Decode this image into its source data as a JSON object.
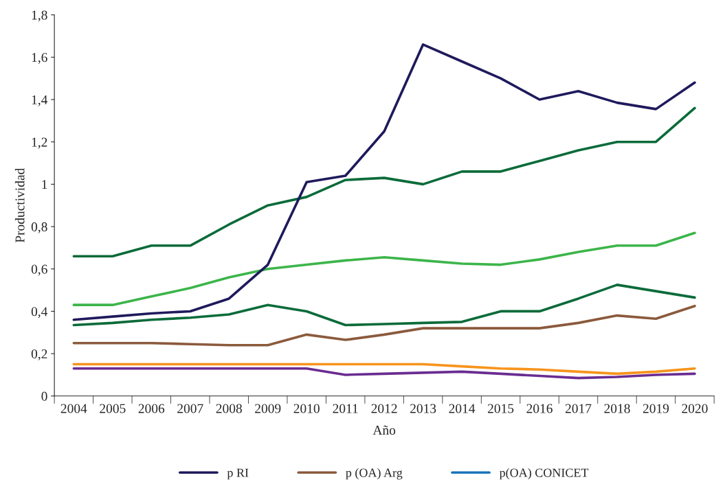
{
  "chart_data": {
    "type": "line",
    "xlabel": "Año",
    "ylabel": "Productividad",
    "categories": [
      "2004",
      "2005",
      "2006",
      "2007",
      "2008",
      "2009",
      "2010",
      "2011",
      "2012",
      "2013",
      "2014",
      "2015",
      "2016",
      "2017",
      "2018",
      "2019",
      "2020"
    ],
    "series": [
      {
        "color": "#f7941d",
        "values": [
          0.15,
          0.15,
          0.15,
          0.15,
          0.15,
          0.15,
          0.15,
          0.15,
          0.15,
          0.15,
          0.14,
          0.13,
          0.125,
          0.115,
          0.105,
          0.115,
          0.13
        ]
      },
      {
        "color": "#0b6b3a",
        "values": [
          0.66,
          0.66,
          0.71,
          0.71,
          0.81,
          0.9,
          0.94,
          1.02,
          1.03,
          1.0,
          1.06,
          1.06,
          1.11,
          1.16,
          1.2,
          1.2,
          1.36
        ]
      },
      {
        "color": "#0b6b3a",
        "values": [
          0.335,
          0.345,
          0.36,
          0.37,
          0.385,
          0.43,
          0.4,
          0.335,
          0.34,
          0.345,
          0.35,
          0.4,
          0.4,
          0.46,
          0.525,
          0.495,
          0.465
        ]
      },
      {
        "color": "#6a2c91",
        "values": [
          0.13,
          0.13,
          0.13,
          0.13,
          0.13,
          0.13,
          0.13,
          0.1,
          0.105,
          0.11,
          0.115,
          0.105,
          0.095,
          0.085,
          0.09,
          0.1,
          0.105
        ]
      },
      {
        "color": "#3cb54a",
        "values": [
          0.43,
          0.43,
          0.47,
          0.51,
          0.56,
          0.6,
          0.62,
          0.64,
          0.655,
          0.64,
          0.625,
          0.62,
          0.645,
          0.68,
          0.71,
          0.71,
          0.77
        ]
      },
      {
        "name": "p RI",
        "color": "#1f1a5c",
        "values": [
          0.36,
          0.375,
          0.39,
          0.4,
          0.46,
          0.62,
          1.01,
          1.04,
          1.25,
          1.66,
          1.58,
          1.5,
          1.4,
          1.44,
          1.385,
          1.355,
          1.48
        ]
      },
      {
        "name": "p (OA) Arg",
        "color": "#8b5a3c",
        "values": [
          0.25,
          0.25,
          0.25,
          0.245,
          0.24,
          0.24,
          0.29,
          0.265,
          0.29,
          0.32,
          0.32,
          0.32,
          0.32,
          0.345,
          0.38,
          0.365,
          0.425
        ]
      },
      {
        "name": "p(OA) CONICET",
        "color": "#1b75bc",
        "values": [
          null,
          null,
          null,
          null,
          null,
          null,
          null,
          null,
          null,
          null,
          null,
          null,
          null,
          null,
          null,
          null,
          null
        ]
      }
    ],
    "ylim": [
      0,
      1.8
    ],
    "yticks": [
      {
        "value": 0,
        "label": "0"
      },
      {
        "value": 0.2,
        "label": "0,2"
      },
      {
        "value": 0.4,
        "label": "0,4"
      },
      {
        "value": 0.6,
        "label": "0,6"
      },
      {
        "value": 0.8,
        "label": "0,8"
      },
      {
        "value": 1,
        "label": "1"
      },
      {
        "value": 1.2,
        "label": "1,2"
      },
      {
        "value": 1.4,
        "label": "1,4"
      },
      {
        "value": 1.6,
        "label": "1,6"
      },
      {
        "value": 1.8,
        "label": "1,8"
      }
    ],
    "grid": false,
    "legend": "bottom",
    "marker": "none",
    "line_style": "solid"
  }
}
